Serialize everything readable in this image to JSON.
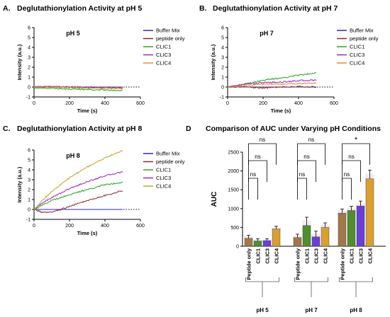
{
  "panels": [
    {
      "letter": "A.",
      "title": "Deglutathionylation Activity at pH 5"
    },
    {
      "letter": "B.",
      "title": "Deglutathionylation Activity at pH 7"
    },
    {
      "letter": "C.",
      "title": "Deglutathionylation Activity at pH 8"
    },
    {
      "letter": "D",
      "title": "Comparison of AUC under Varying pH Conditions"
    }
  ],
  "chart_data": [
    {
      "type": "line",
      "inner_title": "pH 5",
      "xlabel": "Time (s)",
      "ylabel": "Intensity (a.u.)",
      "xlim": [
        0,
        600
      ],
      "ylim": [
        -1,
        6
      ],
      "xticks": [
        0,
        200,
        400,
        600
      ],
      "yticks": [
        -1,
        0,
        1,
        2,
        3,
        4,
        5,
        6
      ],
      "reference_line": 0,
      "series": [
        {
          "name": "Buffer Mix",
          "color": "#2b2bbf",
          "x": [
            0,
            500
          ],
          "y": [
            0.0,
            0.0
          ]
        },
        {
          "name": "peptide only",
          "color": "#8b2a2a",
          "x": [
            0,
            100,
            200,
            300,
            400,
            500
          ],
          "y": [
            0.0,
            0.02,
            0.0,
            -0.05,
            -0.08,
            -0.1
          ]
        },
        {
          "name": "CLIC1",
          "color": "#22aa22",
          "x": [
            0,
            100,
            200,
            300,
            400,
            500
          ],
          "y": [
            -0.05,
            -0.12,
            -0.2,
            -0.25,
            -0.3,
            -0.33
          ]
        },
        {
          "name": "CLIC3",
          "color": "#9c27c9",
          "x": [
            0,
            100,
            200,
            300,
            400,
            500
          ],
          "y": [
            0.02,
            0.05,
            0.0,
            -0.02,
            -0.05,
            -0.05
          ]
        },
        {
          "name": "CLIC4",
          "color": "#f28c28",
          "x": [
            0,
            100,
            200,
            300,
            400,
            500
          ],
          "y": [
            0.0,
            0.0,
            -0.05,
            -0.1,
            -0.1,
            -0.12
          ]
        }
      ]
    },
    {
      "type": "line",
      "inner_title": "pH 7",
      "xlabel": "Time (s)",
      "ylabel": "Intensity (a.u.)",
      "xlim": [
        0,
        600
      ],
      "ylim": [
        -1,
        6
      ],
      "xticks": [
        0,
        200,
        400,
        600
      ],
      "yticks": [
        -1,
        0,
        1,
        2,
        3,
        4,
        5,
        6
      ],
      "reference_line": 0,
      "series": [
        {
          "name": "Buffer Mix",
          "color": "#2b2bbf",
          "x": [
            0,
            500
          ],
          "y": [
            0.0,
            0.0
          ]
        },
        {
          "name": "peptide only",
          "color": "#8b2a2a",
          "x": [
            0,
            100,
            200,
            300,
            400,
            500
          ],
          "y": [
            0.0,
            0.0,
            -0.1,
            0.0,
            0.05,
            0.0
          ]
        },
        {
          "name": "CLIC1",
          "color": "#22aa22",
          "x": [
            0,
            100,
            200,
            300,
            400,
            500
          ],
          "y": [
            0.0,
            0.3,
            0.7,
            0.9,
            1.2,
            1.45
          ]
        },
        {
          "name": "CLIC3",
          "color": "#9c27c9",
          "x": [
            0,
            100,
            200,
            300,
            400,
            500
          ],
          "y": [
            0.0,
            0.3,
            0.45,
            0.5,
            0.65,
            0.7
          ]
        },
        {
          "name": "CLIC4",
          "color": "#f28c28",
          "x": [
            0,
            100,
            200,
            300,
            400,
            500
          ],
          "y": [
            0.0,
            0.15,
            0.3,
            0.3,
            0.35,
            0.4
          ]
        }
      ]
    },
    {
      "type": "line",
      "inner_title": "pH 8",
      "xlabel": "Time (s)",
      "ylabel": "Intensity (a.u.)",
      "xlim": [
        0,
        600
      ],
      "ylim": [
        -1,
        6
      ],
      "xticks": [
        0,
        200,
        400,
        600
      ],
      "yticks": [
        -1,
        0,
        1,
        2,
        3,
        4,
        5,
        6
      ],
      "reference_line": 0,
      "series": [
        {
          "name": "Buffer Mix",
          "color": "#2b2bbf",
          "x": [
            0,
            500
          ],
          "y": [
            0.0,
            0.0
          ]
        },
        {
          "name": "peptide only",
          "color": "#8b2a2a",
          "x": [
            0,
            50,
            100,
            150,
            200,
            300,
            400,
            500
          ],
          "y": [
            0.0,
            -0.3,
            -0.3,
            0.0,
            0.3,
            0.9,
            1.4,
            1.9
          ]
        },
        {
          "name": "CLIC1",
          "color": "#22aa22",
          "x": [
            0,
            50,
            100,
            200,
            300,
            400,
            500
          ],
          "y": [
            0.0,
            0.5,
            0.9,
            1.5,
            2.0,
            2.5,
            2.75
          ]
        },
        {
          "name": "CLIC3",
          "color": "#9c27c9",
          "x": [
            0,
            50,
            100,
            200,
            300,
            400,
            500
          ],
          "y": [
            0.0,
            0.7,
            1.2,
            2.1,
            2.8,
            3.4,
            3.8
          ]
        },
        {
          "name": "CLIC4",
          "color": "#c9a227",
          "x": [
            0,
            50,
            100,
            200,
            300,
            400,
            500
          ],
          "y": [
            0.0,
            1.0,
            1.8,
            3.2,
            4.3,
            5.2,
            5.95
          ]
        }
      ]
    },
    {
      "type": "bar",
      "ylabel": "AUC",
      "ylim": [
        0,
        2500
      ],
      "yticks": [
        0,
        500,
        1000,
        1500,
        2000,
        2500
      ],
      "category_labels": [
        "Peptide only",
        "CLIC1",
        "CLIC3",
        "CLIC4"
      ],
      "groups": [
        {
          "name": "pH 5",
          "values": [
            210,
            140,
            150,
            460
          ],
          "errors": [
            80,
            60,
            50,
            70
          ]
        },
        {
          "name": "pH 7",
          "values": [
            230,
            550,
            250,
            500
          ],
          "errors": [
            90,
            220,
            150,
            120
          ]
        },
        {
          "name": "pH 8",
          "values": [
            880,
            950,
            1070,
            1790
          ],
          "errors": [
            110,
            110,
            130,
            230
          ]
        }
      ],
      "bar_colors": [
        "#a0794a",
        "#4e8f2e",
        "#6a3fd8",
        "#d8a030"
      ],
      "significance": [
        {
          "group": 0,
          "from": 0,
          "to": 1,
          "level": 1,
          "label": "ns"
        },
        {
          "group": 0,
          "from": 0,
          "to": 2,
          "level": 2,
          "label": "ns"
        },
        {
          "group": 0,
          "from": 0,
          "to": 3,
          "level": 3,
          "label": "ns"
        },
        {
          "group": 1,
          "from": 0,
          "to": 1,
          "level": 1,
          "label": "ns"
        },
        {
          "group": 1,
          "from": 0,
          "to": 2,
          "level": 2,
          "label": "ns"
        },
        {
          "group": 1,
          "from": 0,
          "to": 3,
          "level": 3,
          "label": "ns"
        },
        {
          "group": 2,
          "from": 0,
          "to": 1,
          "level": 1,
          "label": "ns"
        },
        {
          "group": 2,
          "from": 0,
          "to": 2,
          "level": 2,
          "label": "ns"
        },
        {
          "group": 2,
          "from": 0,
          "to": 3,
          "level": 3,
          "label": "*"
        }
      ]
    }
  ]
}
